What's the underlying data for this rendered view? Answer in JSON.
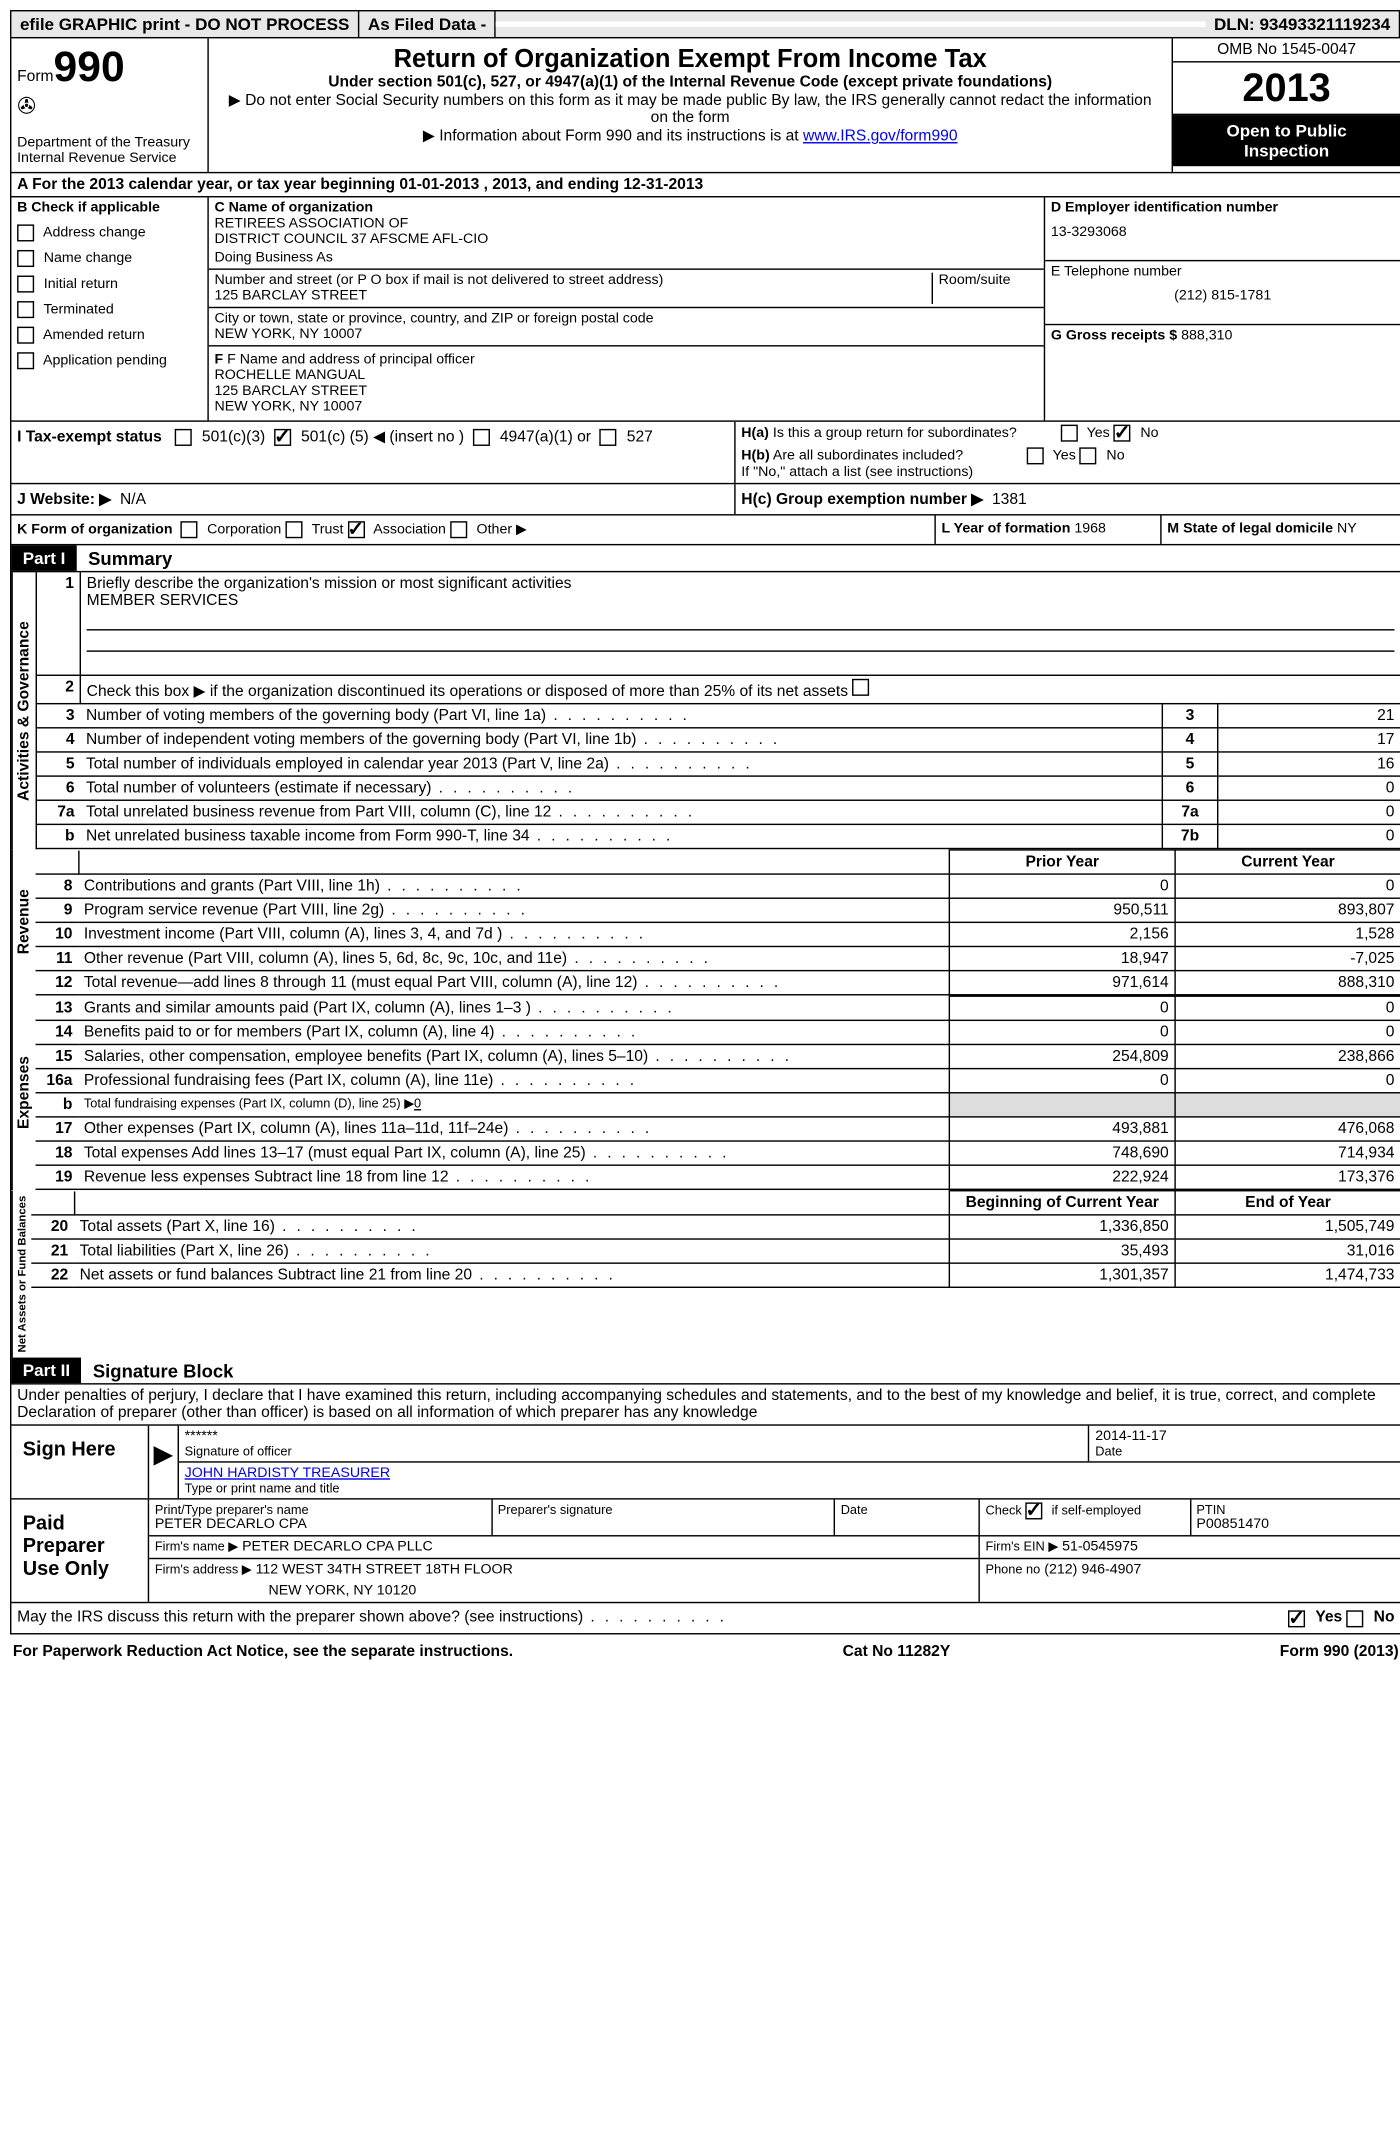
{
  "topbar": {
    "efile": "efile GRAPHIC print - DO NOT PROCESS",
    "asfiled": "As Filed Data -",
    "dln_label": "DLN:",
    "dln": "93493321119234"
  },
  "header": {
    "form_word": "Form",
    "form_num": "990",
    "dept1": "Department of the Treasury",
    "dept2": "Internal Revenue Service",
    "title": "Return of Organization Exempt From Income Tax",
    "subtitle": "Under section 501(c), 527, or 4947(a)(1) of the Internal Revenue Code (except private foundations)",
    "note1": "▶ Do not enter Social Security numbers on this form as it may be made public  By law, the IRS generally cannot redact the information on the form",
    "note2_pre": "▶ Information about Form 990 and its instructions is at ",
    "note2_link": "www.IRS.gov/form990",
    "omb": "OMB No  1545-0047",
    "year": "2013",
    "inspect1": "Open to Public",
    "inspect2": "Inspection"
  },
  "section_a": "A  For the 2013 calendar year, or tax year beginning 01-01-2013     , 2013, and ending 12-31-2013",
  "col_b": {
    "header": "B  Check if applicable",
    "items": [
      "Address change",
      "Name change",
      "Initial return",
      "Terminated",
      "Amended return",
      "Application pending"
    ]
  },
  "col_c": {
    "name_label": "C Name of organization",
    "name1": "RETIREES ASSOCIATION OF",
    "name2": "DISTRICT COUNCIL 37 AFSCME AFL-CIO",
    "dba": "Doing Business As",
    "addr_label": "Number and street (or P O  box if mail is not delivered to street address)",
    "room": "Room/suite",
    "addr": "125 BARCLAY STREET",
    "city_label": "City or town, state or province, country, and ZIP or foreign postal code",
    "city": "NEW YORK, NY  10007",
    "officer_label": "F  Name and address of principal officer",
    "officer1": "ROCHELLE MANGUAL",
    "officer2": "125 BARCLAY STREET",
    "officer3": "NEW YORK, NY  10007"
  },
  "col_d": {
    "ein_label": "D Employer identification number",
    "ein": "13-3293068",
    "phone_label": "E Telephone number",
    "phone": "(212) 815-1781",
    "gross_label": "G Gross receipts $",
    "gross": "888,310",
    "ha_label": "H(a)  Is this a group return for subordinates?",
    "hb_label": "H(b)  Are all subordinates included?",
    "hb_note": "If \"No,\" attach a list  (see instructions)",
    "hc_label": "H(c)   Group exemption number ▶",
    "hc": "1381"
  },
  "row_i": {
    "label": "I   Tax-exempt status",
    "opt1": "501(c)(3)",
    "opt2_pre": "501(c) (",
    "opt2_num": "5",
    "opt2_post": ") ◀ (insert no )",
    "opt3": "4947(a)(1) or",
    "opt4": "527"
  },
  "row_j": {
    "label": "J   Website: ▶",
    "value": "N/A"
  },
  "row_k": {
    "label": "K Form of organization",
    "opts": [
      "Corporation",
      "Trust",
      "Association",
      "Other ▶"
    ],
    "l_label": "L Year of formation",
    "l_val": "1968",
    "m_label": "M State of legal domicile",
    "m_val": "NY"
  },
  "part1": {
    "num": "Part I",
    "title": "Summary"
  },
  "p1_items": {
    "q1": "Briefly describe the organization's mission or most significant activities",
    "q1_ans": "MEMBER SERVICES",
    "q2": "Check this box ▶        if the organization discontinued its operations or disposed of more than 25% of its net assets",
    "q3": "Number of voting members of the governing body (Part VI, line 1a)",
    "q4": "Number of independent voting members of the governing body (Part VI, line 1b)",
    "q5": "Total number of individuals employed in calendar year 2013 (Part V, line 2a)",
    "q6": "Total number of volunteers (estimate if necessary)",
    "q7a": "Total unrelated business revenue from Part VIII, column (C), line 12",
    "q7b": "Net unrelated business taxable income from Form 990-T, line 34"
  },
  "p1_vals": {
    "3": "21",
    "4": "17",
    "5": "16",
    "6": "0",
    "7a": "0",
    "7b": "0"
  },
  "fin_headers": {
    "prior": "Prior Year",
    "current": "Current Year",
    "begin": "Beginning of Current Year",
    "end": "End of Year"
  },
  "revenue": [
    {
      "n": "8",
      "d": "Contributions and grants (Part VIII, line 1h)",
      "p": "0",
      "c": "0"
    },
    {
      "n": "9",
      "d": "Program service revenue (Part VIII, line 2g)",
      "p": "950,511",
      "c": "893,807"
    },
    {
      "n": "10",
      "d": "Investment income (Part VIII, column (A), lines 3, 4, and 7d )",
      "p": "2,156",
      "c": "1,528"
    },
    {
      "n": "11",
      "d": "Other revenue (Part VIII, column (A), lines 5, 6d, 8c, 9c, 10c, and 11e)",
      "p": "18,947",
      "c": "-7,025"
    },
    {
      "n": "12",
      "d": "Total revenue—add lines 8 through 11 (must equal Part VIII, column (A), line 12)",
      "p": "971,614",
      "c": "888,310"
    }
  ],
  "expenses": [
    {
      "n": "13",
      "d": "Grants and similar amounts paid (Part IX, column (A), lines 1–3 )",
      "p": "0",
      "c": "0"
    },
    {
      "n": "14",
      "d": "Benefits paid to or for members (Part IX, column (A), line 4)",
      "p": "0",
      "c": "0"
    },
    {
      "n": "15",
      "d": "Salaries, other compensation, employee benefits (Part IX, column (A), lines 5–10)",
      "p": "254,809",
      "c": "238,866"
    },
    {
      "n": "16a",
      "d": "Professional fundraising fees (Part IX, column (A), line 11e)",
      "p": "0",
      "c": "0"
    },
    {
      "n": "b",
      "d": "Total fundraising expenses (Part IX, column (D), line 25) ▶",
      "p": "",
      "c": "",
      "sub": true,
      "val": "0"
    },
    {
      "n": "17",
      "d": "Other expenses (Part IX, column (A), lines 11a–11d, 11f–24e)",
      "p": "493,881",
      "c": "476,068"
    },
    {
      "n": "18",
      "d": "Total expenses  Add lines 13–17 (must equal Part IX, column (A), line 25)",
      "p": "748,690",
      "c": "714,934"
    },
    {
      "n": "19",
      "d": "Revenue less expenses  Subtract line 18 from line 12",
      "p": "222,924",
      "c": "173,376"
    }
  ],
  "netassets": [
    {
      "n": "20",
      "d": "Total assets (Part X, line 16)",
      "p": "1,336,850",
      "c": "1,505,749"
    },
    {
      "n": "21",
      "d": "Total liabilities (Part X, line 26)",
      "p": "35,493",
      "c": "31,016"
    },
    {
      "n": "22",
      "d": "Net assets or fund balances  Subtract line 21 from line 20",
      "p": "1,301,357",
      "c": "1,474,733"
    }
  ],
  "vtabs": {
    "ag": "Activities & Governance",
    "rev": "Revenue",
    "exp": "Expenses",
    "na": "Net Assets or Fund Balances"
  },
  "part2": {
    "num": "Part II",
    "title": "Signature Block"
  },
  "perjury": "Under penalties of perjury, I declare that I have examined this return, including accompanying schedules and statements, and to the best of my knowledge and belief, it is true, correct, and complete  Declaration of preparer (other than officer) is based on all information of which preparer has any knowledge",
  "sign": {
    "label": "Sign Here",
    "sig": "******",
    "sig_label": "Signature of officer",
    "date": "2014-11-17",
    "date_label": "Date",
    "name": "JOHN HARDISTY TREASURER",
    "name_label": "Type or print name and title"
  },
  "paid": {
    "label": "Paid Preparer Use Only",
    "preparer_name_label": "Print/Type preparer's name",
    "preparer_name": "PETER DECARLO CPA",
    "sig_label": "Preparer's signature",
    "date_label": "Date",
    "check_label": "Check          if self-employed",
    "ptin_label": "PTIN",
    "ptin": "P00851470",
    "firm_name_label": "Firm's name     ▶",
    "firm_name": "PETER DECARLO CPA PLLC",
    "firm_ein_label": "Firm's EIN ▶",
    "firm_ein": "51-0545975",
    "firm_addr_label": "Firm's address ▶",
    "firm_addr1": "112 WEST 34TH STREET 18TH FLOOR",
    "firm_addr2": "NEW YORK, NY  10120",
    "phone_label": "Phone no",
    "phone": "(212) 946-4907"
  },
  "discuss": "May the IRS discuss this return with the preparer shown above? (see instructions)",
  "footer": {
    "left": "For Paperwork Reduction Act Notice, see the separate instructions.",
    "mid": "Cat No  11282Y",
    "right_pre": "Form ",
    "right_bold": "990",
    "right_post": " (2013)"
  }
}
